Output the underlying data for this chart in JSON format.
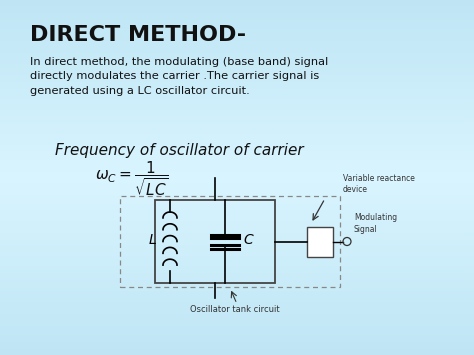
{
  "title": "DIRECT METHOD-",
  "body_text": "In direct method, the modulating (base band) signal\ndirectly modulates the carrier .The carrier signal is\ngenerated using a LC oscillator circuit.",
  "freq_label": "Frequency of oscillator of carrier",
  "formula": "$\\omega_C = \\dfrac{1}{\\sqrt{LC}}$",
  "bg_top_color": "#b8d8ea",
  "bg_mid_color": "#dff0f8",
  "bg_bot_color": "#b8d8ea",
  "title_color": "#111111",
  "body_color": "#111111",
  "circuit_label_L": "L",
  "circuit_label_C": "C",
  "circuit_label_osc": "Oscillator tank circuit",
  "circuit_label_var": "Variable reactance\ndevice",
  "circuit_label_mod": "Modulating\nSignal"
}
